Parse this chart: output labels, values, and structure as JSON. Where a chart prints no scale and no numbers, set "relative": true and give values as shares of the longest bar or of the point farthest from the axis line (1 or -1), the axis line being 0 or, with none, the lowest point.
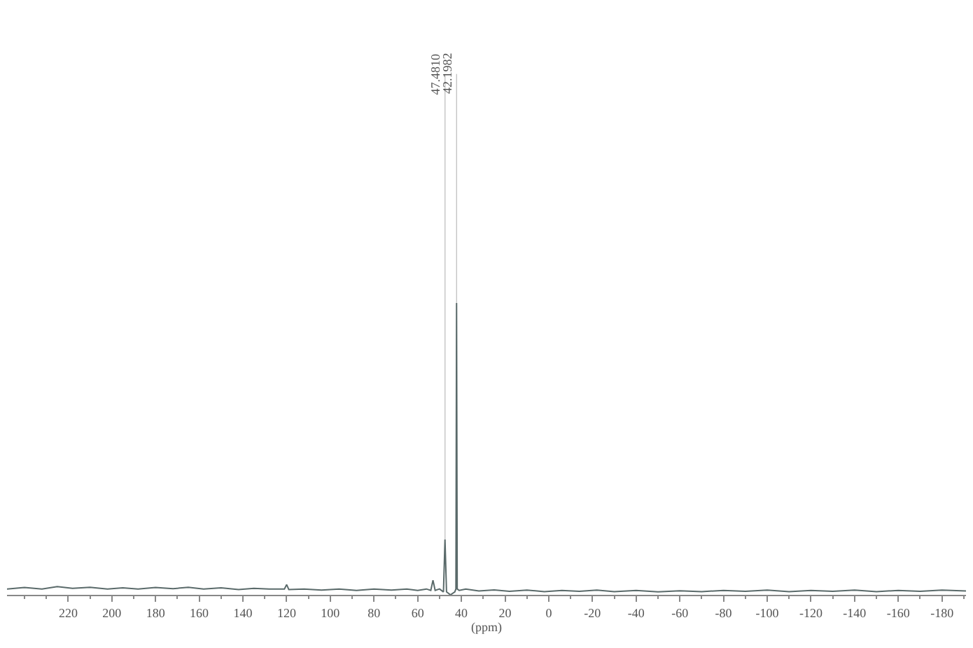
{
  "chart_data": {
    "type": "line",
    "relative": true,
    "xlabel": "(ppm)",
    "xlim": [
      248,
      -191
    ],
    "xticks": [
      220,
      200,
      180,
      160,
      140,
      120,
      100,
      80,
      60,
      40,
      20,
      0,
      -20,
      -40,
      -60,
      -80,
      -100,
      -120,
      -140,
      -160,
      -180
    ],
    "marker": "none",
    "line_style": "solid",
    "annotations": [
      {
        "text": "47.4810",
        "x": 47.481,
        "y": 0.19
      },
      {
        "text": "42.1982",
        "x": 42.1982,
        "y": 1
      }
    ],
    "series": [
      {
        "color": "#5a6a6a",
        "x": [
          248,
          240,
          232,
          225,
          218,
          210,
          202,
          195,
          188,
          180,
          172,
          165,
          158,
          150,
          142,
          135,
          128,
          121,
          120,
          119,
          112,
          104,
          96,
          88,
          80,
          72,
          65,
          60,
          56,
          54,
          53,
          52,
          50,
          48.2,
          47.5,
          46.8,
          45,
          43,
          42.5,
          42.2,
          41.9,
          41,
          38,
          32,
          25,
          18,
          10,
          2,
          -6,
          -14,
          -22,
          -30,
          -40,
          -50,
          -60,
          -70,
          -80,
          -90,
          -100,
          -110,
          -120,
          -130,
          -140,
          -150,
          -160,
          -170,
          -180,
          -191
        ],
        "values": [
          0.02,
          0.025,
          0.02,
          0.028,
          0.022,
          0.026,
          0.02,
          0.024,
          0.02,
          0.025,
          0.021,
          0.026,
          0.02,
          0.024,
          0.018,
          0.022,
          0.02,
          0.02,
          0.035,
          0.018,
          0.02,
          0.016,
          0.02,
          0.015,
          0.02,
          0.016,
          0.02,
          0.015,
          0.02,
          0.015,
          0.05,
          0.015,
          0.02,
          0.01,
          0.19,
          0.01,
          0.0,
          0.01,
          0.02,
          1,
          0.02,
          0.015,
          0.02,
          0.013,
          0.017,
          0.012,
          0.016,
          0.011,
          0.015,
          0.012,
          0.016,
          0.011,
          0.015,
          0.01,
          0.014,
          0.011,
          0.015,
          0.012,
          0.016,
          0.011,
          0.015,
          0.012,
          0.016,
          0.011,
          0.015,
          0.012,
          0.016,
          0.013
        ]
      }
    ]
  }
}
